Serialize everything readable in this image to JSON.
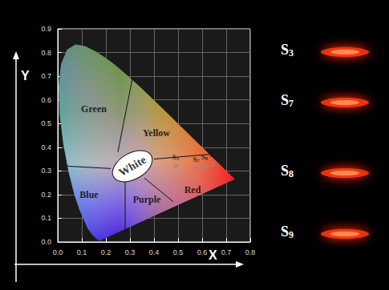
{
  "chart_data": {
    "type": "scatter",
    "xlabel": "X",
    "ylabel": "Y",
    "xlim": [
      0,
      0.8
    ],
    "ylim": [
      0,
      0.9
    ],
    "xticks": [
      {
        "value": 0,
        "label": "0.0"
      },
      0.1,
      0.2,
      0.3,
      0.4,
      0.5,
      0.6,
      0.7,
      0.8
    ],
    "yticks": [
      {
        "value": 0,
        "label": "0.0"
      },
      0.1,
      0.2,
      0.3,
      0.4,
      0.5,
      0.6,
      0.7,
      0.8,
      0.9
    ],
    "grid": true,
    "marker": "x",
    "color": "#8c8c8c",
    "points": [
      {
        "name": "S3",
        "x": 0.49,
        "y": 0.32
      },
      {
        "name": "S7",
        "x": 0.575,
        "y": 0.31
      },
      {
        "name": "S8",
        "x": 0.61,
        "y": 0.32
      },
      {
        "name": "S9",
        "x": 0.645,
        "y": 0.33
      }
    ],
    "regions": [
      {
        "label": "Green",
        "x": 0.15,
        "y": 0.56
      },
      {
        "label": "Yellow",
        "x": 0.41,
        "y": 0.46
      },
      {
        "label": "White",
        "x": 0.31,
        "y": 0.32
      },
      {
        "label": "Blue",
        "x": 0.13,
        "y": 0.2
      },
      {
        "label": "Purple",
        "x": 0.37,
        "y": 0.18
      },
      {
        "label": "Red",
        "x": 0.56,
        "y": 0.22
      }
    ],
    "white_region": {
      "center": [
        0.31,
        0.32
      ],
      "rx": 0.09,
      "ry": 0.055
    },
    "locus": [
      [
        0.1741,
        0.005
      ],
      [
        0.1714,
        0.0051
      ],
      [
        0.1689,
        0.0069
      ],
      [
        0.1644,
        0.0109
      ],
      [
        0.1566,
        0.0177
      ],
      [
        0.144,
        0.0297
      ],
      [
        0.1241,
        0.0578
      ],
      [
        0.0913,
        0.1327
      ],
      [
        0.0687,
        0.2007
      ],
      [
        0.0454,
        0.295
      ],
      [
        0.0235,
        0.4127
      ],
      [
        0.0082,
        0.5384
      ],
      [
        0.0039,
        0.6548
      ],
      [
        0.0139,
        0.7502
      ],
      [
        0.0389,
        0.812
      ],
      [
        0.0743,
        0.8338
      ],
      [
        0.1142,
        0.8262
      ],
      [
        0.1547,
        0.8059
      ],
      [
        0.1929,
        0.7816
      ],
      [
        0.2296,
        0.7543
      ],
      [
        0.2658,
        0.7243
      ],
      [
        0.3016,
        0.6923
      ],
      [
        0.3373,
        0.6589
      ],
      [
        0.3731,
        0.6245
      ],
      [
        0.4087,
        0.5896
      ],
      [
        0.4441,
        0.5547
      ],
      [
        0.4788,
        0.5202
      ],
      [
        0.5125,
        0.4866
      ],
      [
        0.5448,
        0.4544
      ],
      [
        0.5752,
        0.4242
      ],
      [
        0.6029,
        0.3965
      ],
      [
        0.627,
        0.3725
      ],
      [
        0.6482,
        0.3514
      ],
      [
        0.6658,
        0.334
      ],
      [
        0.6801,
        0.3197
      ],
      [
        0.6915,
        0.3083
      ],
      [
        0.7006,
        0.2993
      ],
      [
        0.7079,
        0.292
      ],
      [
        0.714,
        0.2859
      ],
      [
        0.719,
        0.2809
      ],
      [
        0.723,
        0.277
      ],
      [
        0.726,
        0.274
      ],
      [
        0.73,
        0.27
      ],
      [
        0.7347,
        0.2653
      ]
    ],
    "boundaries": [
      [
        [
          0.25,
          0.38
        ],
        [
          0.31,
          0.69
        ]
      ],
      [
        [
          0.04,
          0.32
        ],
        [
          0.22,
          0.31
        ]
      ],
      [
        [
          0.28,
          0.26
        ],
        [
          0.28,
          0.04
        ]
      ],
      [
        [
          0.36,
          0.27
        ],
        [
          0.48,
          0.17
        ]
      ],
      [
        [
          0.4,
          0.35
        ],
        [
          0.63,
          0.37
        ]
      ]
    ],
    "photos": [
      "S3",
      "S7",
      "S8",
      "S9"
    ]
  }
}
